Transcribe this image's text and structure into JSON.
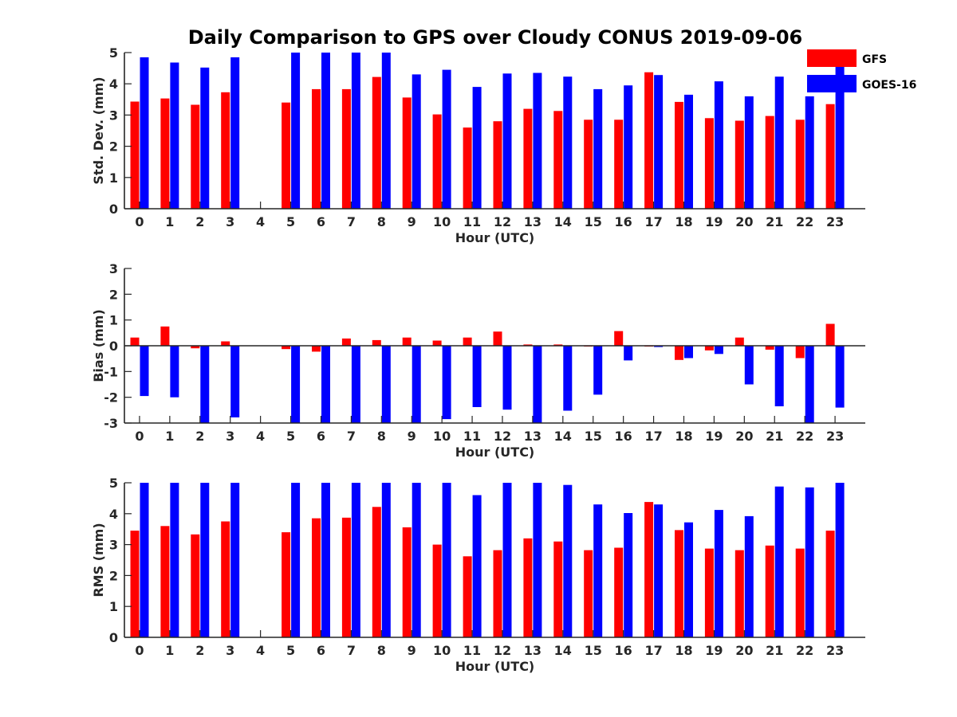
{
  "chart_data": {
    "title": "Daily Comparison to GPS over Cloudy CONUS 2019-09-06",
    "legend": {
      "placement": "top-right",
      "entries": [
        {
          "name": "GFS",
          "color": "#ff0000"
        },
        {
          "name": "GOES-16",
          "color": "#0000ff"
        }
      ]
    },
    "categories": [
      "0",
      "1",
      "2",
      "3",
      "4",
      "5",
      "6",
      "7",
      "8",
      "9",
      "10",
      "11",
      "12",
      "13",
      "14",
      "15",
      "16",
      "17",
      "18",
      "19",
      "20",
      "21",
      "22",
      "23"
    ],
    "charts": [
      {
        "type": "bar",
        "ylabel": "Std. Dev. (mm)",
        "xlabel": "Hour (UTC)",
        "ylim": [
          0,
          5
        ],
        "yticks": [
          "0",
          "1",
          "2",
          "3",
          "4",
          "5"
        ],
        "series": [
          {
            "name": "GFS",
            "color": "#ff0000",
            "values": [
              3.43,
              3.53,
              3.33,
              3.73,
              null,
              3.4,
              3.83,
              3.83,
              4.22,
              3.56,
              3.02,
              2.6,
              2.8,
              3.2,
              3.13,
              2.85,
              2.85,
              4.37,
              3.42,
              2.9,
              2.82,
              2.97,
              2.85,
              3.35
            ]
          },
          {
            "name": "GOES-16",
            "color": "#0000ff",
            "values": [
              4.85,
              4.68,
              4.52,
              4.85,
              null,
              5.0,
              5.0,
              5.0,
              5.0,
              4.3,
              4.45,
              3.9,
              4.33,
              4.35,
              4.23,
              3.83,
              3.95,
              4.28,
              3.65,
              4.08,
              3.6,
              4.23,
              3.6,
              4.7
            ]
          }
        ]
      },
      {
        "type": "bar",
        "ylabel": "Bias (mm)",
        "xlabel": "Hour (UTC)",
        "ylim": [
          -3,
          3
        ],
        "yticks": [
          "-3",
          "-2",
          "-1",
          "0",
          "1",
          "2",
          "3"
        ],
        "series": [
          {
            "name": "GFS",
            "color": "#ff0000",
            "values": [
              0.32,
              0.75,
              -0.1,
              0.17,
              null,
              -0.13,
              -0.23,
              0.28,
              0.22,
              0.32,
              0.2,
              0.32,
              0.55,
              0.05,
              0.05,
              -0.03,
              0.57,
              -0.03,
              -0.55,
              -0.18,
              0.32,
              -0.15,
              -0.48,
              0.85
            ]
          },
          {
            "name": "GOES-16",
            "color": "#0000ff",
            "values": [
              -1.95,
              -2.0,
              -3.0,
              -2.78,
              null,
              -3.0,
              -3.0,
              -3.0,
              -3.0,
              -3.0,
              -2.85,
              -2.38,
              -2.48,
              -3.0,
              -2.52,
              -1.9,
              -0.57,
              -0.05,
              -0.48,
              -0.32,
              -1.5,
              -2.35,
              -3.0,
              -2.4
            ]
          }
        ]
      },
      {
        "type": "bar",
        "ylabel": "RMS (mm)",
        "xlabel": "Hour (UTC)",
        "ylim": [
          0,
          5
        ],
        "yticks": [
          "0",
          "1",
          "2",
          "3",
          "4",
          "5"
        ],
        "series": [
          {
            "name": "GFS",
            "color": "#ff0000",
            "values": [
              3.45,
              3.6,
              3.33,
              3.75,
              null,
              3.4,
              3.85,
              3.87,
              4.22,
              3.56,
              3.0,
              2.62,
              2.82,
              3.2,
              3.1,
              2.82,
              2.9,
              4.38,
              3.47,
              2.87,
              2.82,
              2.97,
              2.87,
              3.45
            ]
          },
          {
            "name": "GOES-16",
            "color": "#0000ff",
            "values": [
              5.0,
              5.0,
              5.0,
              5.0,
              null,
              5.0,
              5.0,
              5.0,
              5.0,
              5.0,
              5.0,
              4.6,
              5.0,
              5.0,
              4.93,
              4.3,
              4.02,
              4.3,
              3.72,
              4.12,
              3.92,
              4.88,
              4.85,
              5.0
            ]
          }
        ]
      }
    ]
  }
}
